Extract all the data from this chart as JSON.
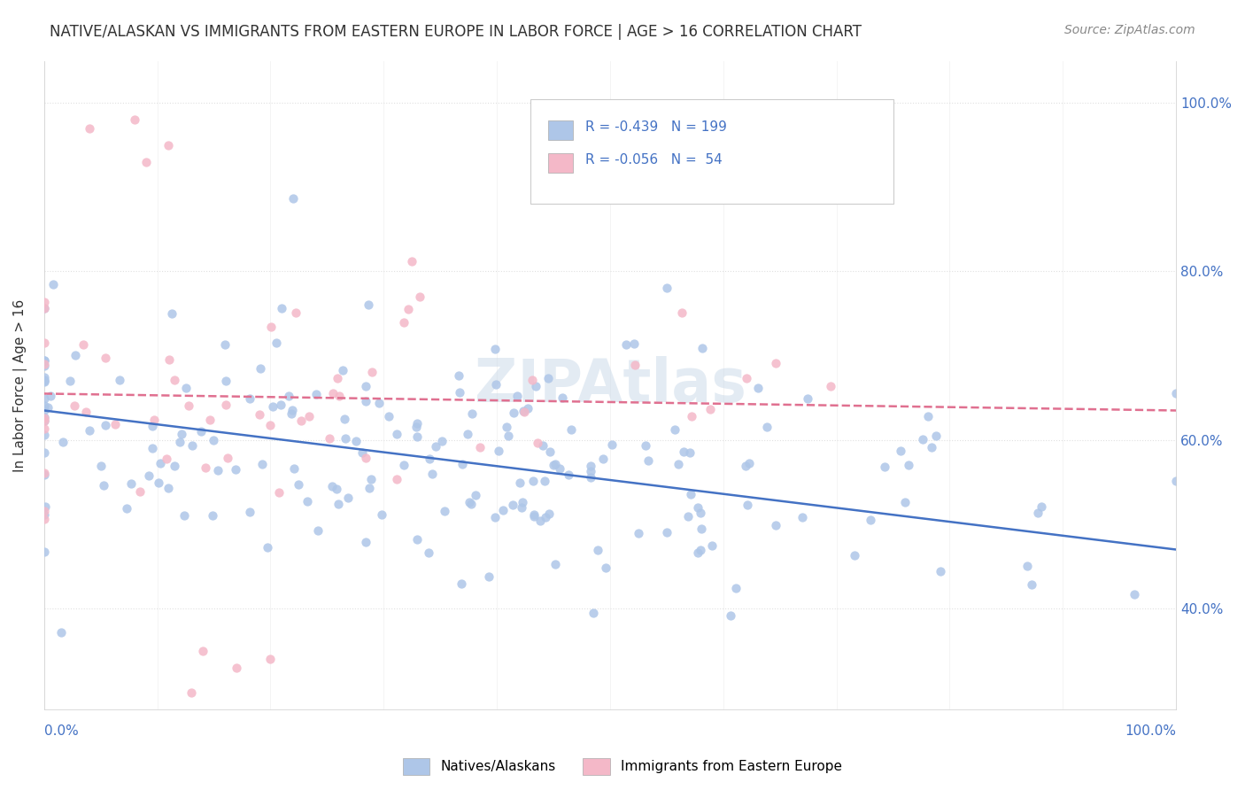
{
  "title": "NATIVE/ALASKAN VS IMMIGRANTS FROM EASTERN EUROPE IN LABOR FORCE | AGE > 16 CORRELATION CHART",
  "source": "Source: ZipAtlas.com",
  "ylabel": "In Labor Force | Age > 16",
  "legend_blue_label": "Natives/Alaskans",
  "legend_pink_label": "Immigrants from Eastern Europe",
  "legend_blue_r": "-0.439",
  "legend_blue_n": "199",
  "legend_pink_r": "-0.056",
  "legend_pink_n": " 54",
  "blue_color": "#aec6e8",
  "blue_line_color": "#4472c4",
  "pink_color": "#f4b8c8",
  "pink_line_color": "#e07090",
  "watermark_color": "#c8d8e8",
  "blue_trend_x": [
    0.0,
    1.0
  ],
  "blue_trend_y": [
    0.635,
    0.47
  ],
  "pink_trend_x": [
    0.0,
    1.0
  ],
  "pink_trend_y": [
    0.655,
    0.635
  ],
  "xlim": [
    0.0,
    1.0
  ],
  "ylim": [
    0.28,
    1.05
  ],
  "yticks": [
    0.4,
    0.6,
    0.8,
    1.0
  ],
  "ytick_labels": [
    "40.0%",
    "60.0%",
    "80.0%",
    "100.0%"
  ],
  "bg_color": "#ffffff",
  "grid_color": "#e0e0e0",
  "axis_color": "#cccccc",
  "title_color": "#333333",
  "label_color": "#4472c4"
}
